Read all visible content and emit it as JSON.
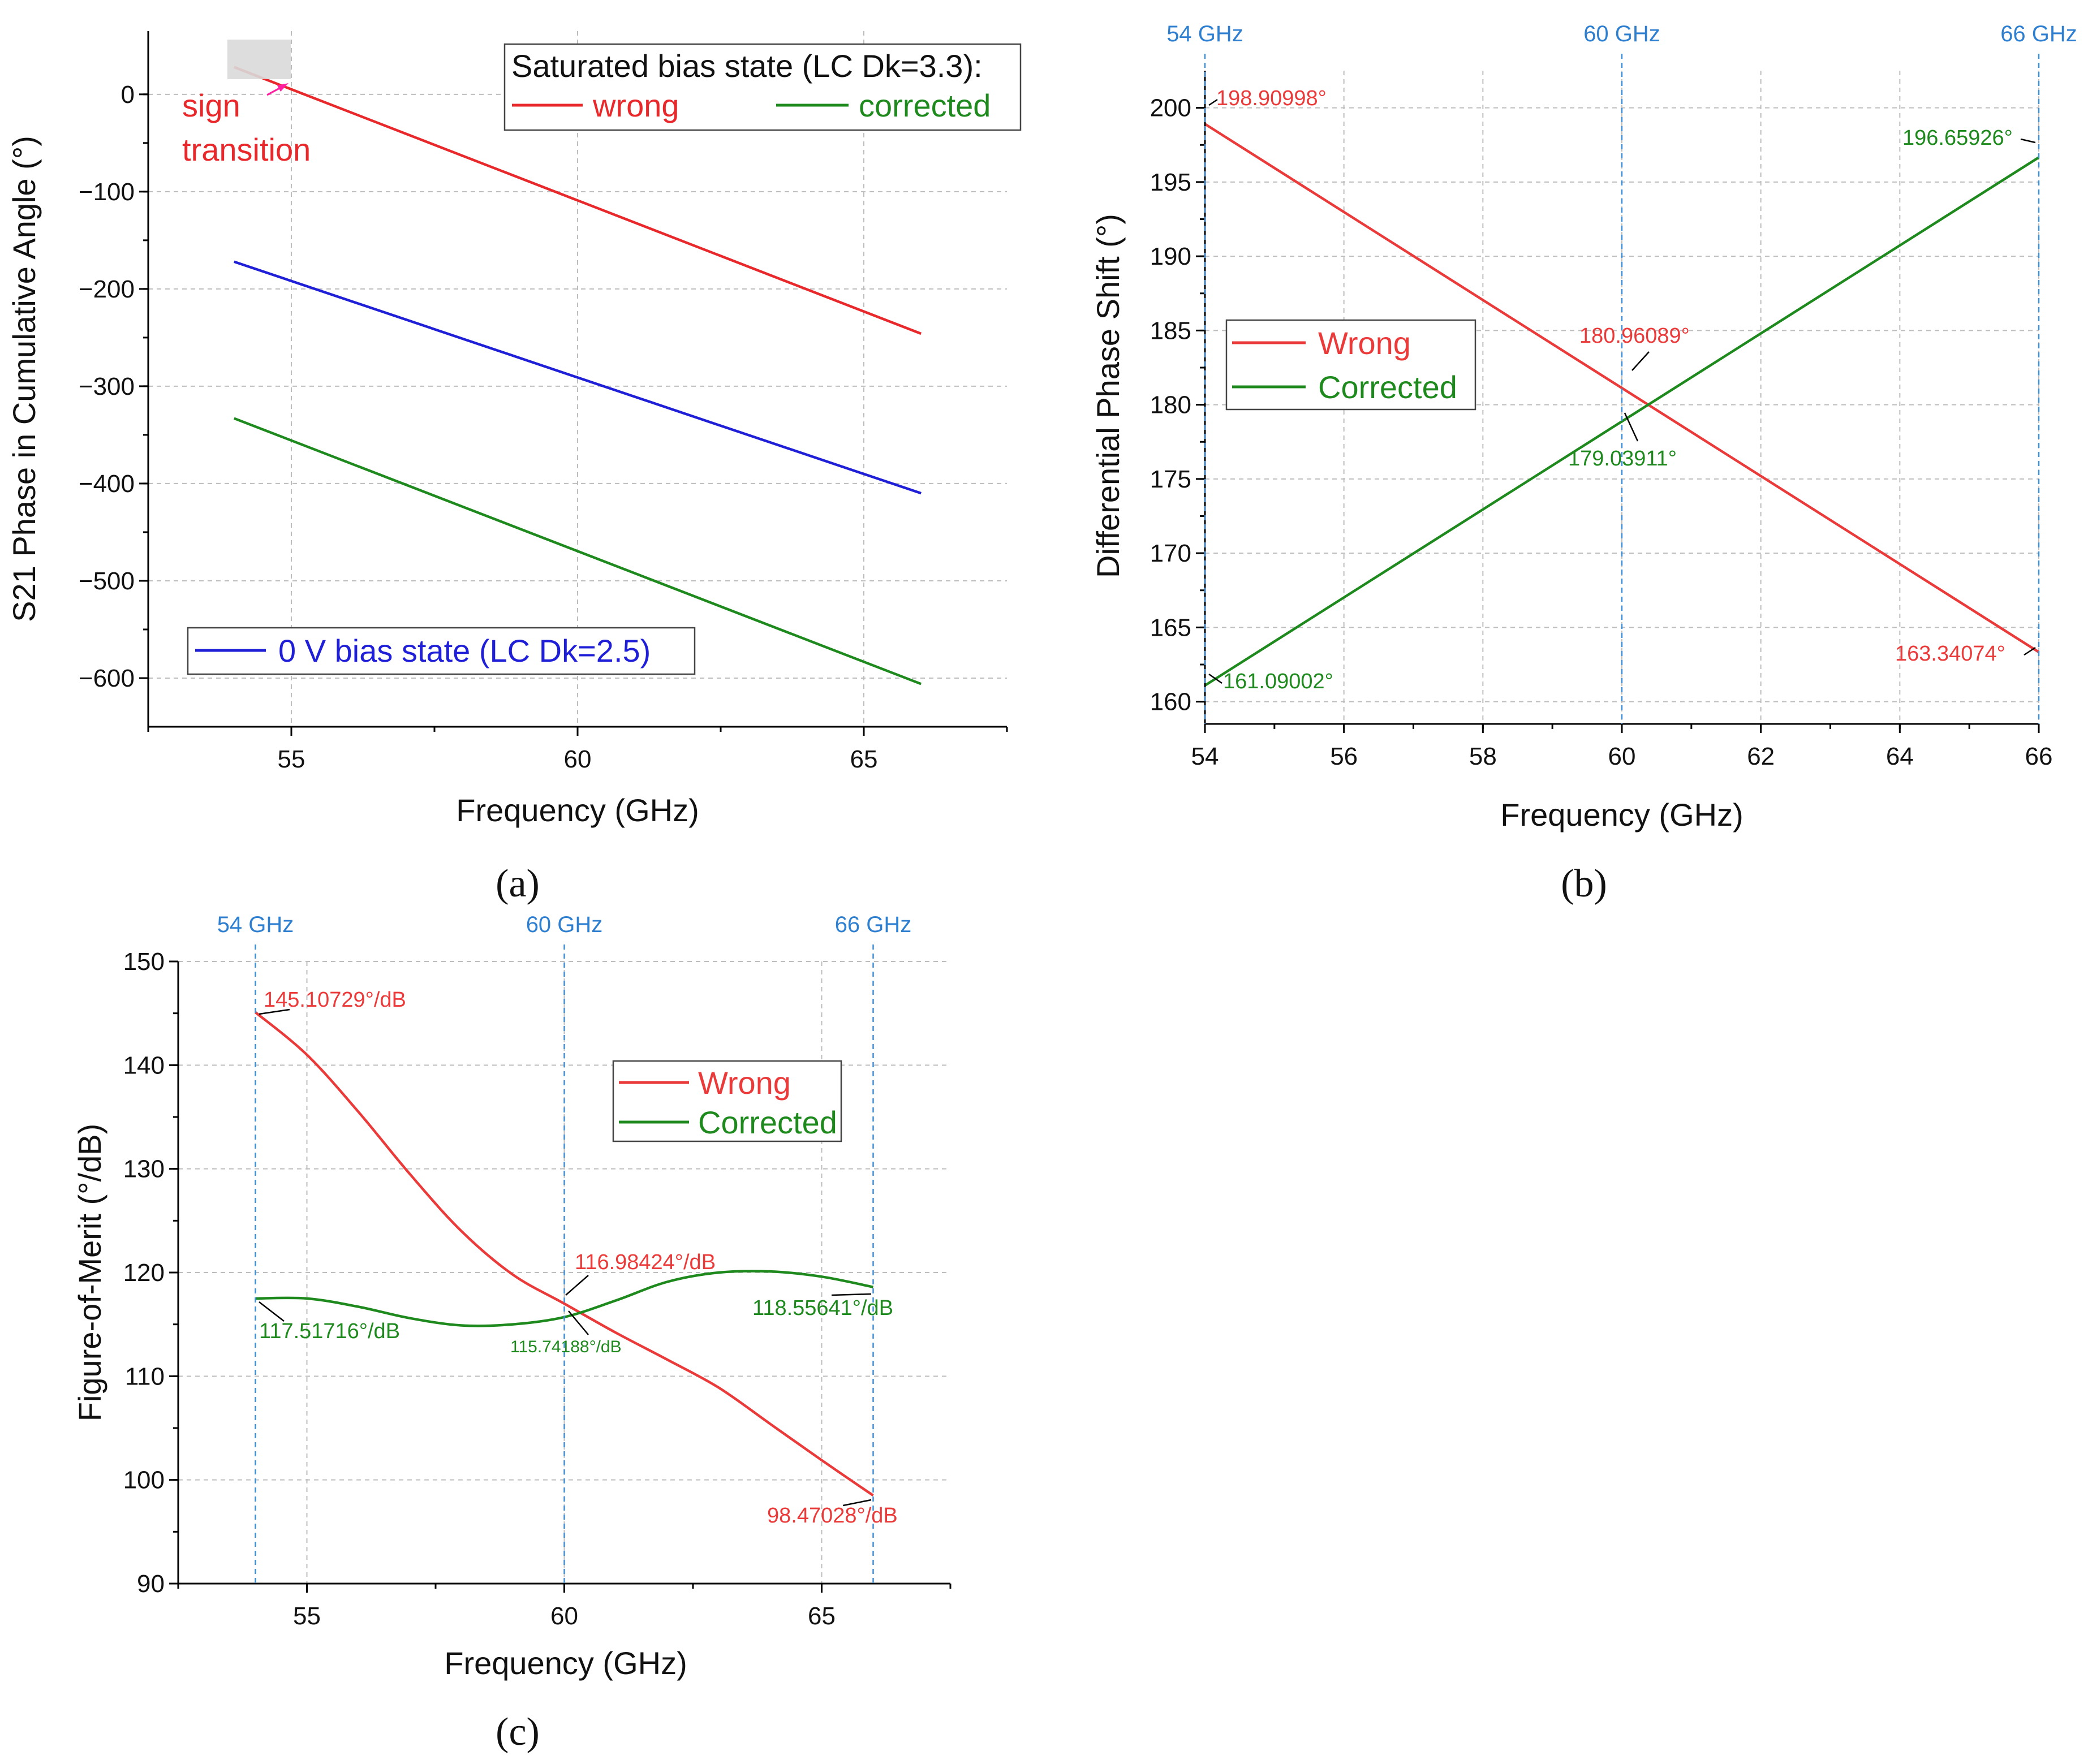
{
  "chart_data": [
    {
      "id": "a",
      "type": "line",
      "panel_label": "(a)",
      "xlabel": "Frequency (GHz)",
      "ylabel": "S21 Phase in Cumulative Angle (°)",
      "xlim": [
        52.5,
        67.5
      ],
      "ylim": [
        -650,
        65
      ],
      "x_ticks": [
        55,
        60,
        65
      ],
      "y_ticks": [
        0,
        -100,
        -200,
        -300,
        -400,
        -500,
        -600
      ],
      "series": [
        {
          "name": "wrong",
          "color": "#e8282a",
          "x": [
            54,
            66
          ],
          "y": [
            28,
            -246
          ]
        },
        {
          "name": "corrected",
          "color": "#1e8a1e",
          "x": [
            54,
            66
          ],
          "y": [
            -333,
            -606
          ]
        },
        {
          "name": "0 V bias state (LC Dk=2.5)",
          "color": "#1f1fd8",
          "x": [
            54,
            66
          ],
          "y": [
            -172,
            -410
          ]
        }
      ],
      "legend_top": {
        "title": "Saturated bias state (LC Dk=3.3):",
        "entries": [
          "wrong",
          "corrected"
        ]
      },
      "legend_bottom": {
        "entries": [
          "0 V bias state (LC Dk=2.5)"
        ]
      },
      "annotation": {
        "text_line1": "sign",
        "text_line2": "transition",
        "color": "#e8282a",
        "arrow_color": "#ff1fa0"
      }
    },
    {
      "id": "b",
      "type": "line",
      "panel_label": "(b)",
      "xlabel": "Frequency (GHz)",
      "ylabel": "Differential Phase Shift  (°)",
      "xlim": [
        54,
        66
      ],
      "ylim": [
        158.5,
        202.5
      ],
      "x_ticks": [
        54,
        56,
        58,
        60,
        62,
        64,
        66
      ],
      "y_ticks": [
        160,
        165,
        170,
        175,
        180,
        185,
        190,
        195,
        200
      ],
      "top_markers": [
        {
          "x": 54,
          "label": "54 GHz"
        },
        {
          "x": 60,
          "label": "60 GHz"
        },
        {
          "x": 66,
          "label": "66 GHz"
        }
      ],
      "series": [
        {
          "name": "Wrong",
          "color": "#ea3a3a",
          "x": [
            54,
            66
          ],
          "y": [
            198.90998,
            163.34074
          ]
        },
        {
          "name": "Corrected",
          "color": "#1e8a1e",
          "x": [
            54,
            66
          ],
          "y": [
            161.09002,
            196.65926
          ]
        }
      ],
      "annotations": [
        {
          "text": "198.90998°",
          "color": "#ea3a3a"
        },
        {
          "text": "163.34074°",
          "color": "#ea3a3a"
        },
        {
          "text": "180.96089°",
          "color": "#ea3a3a"
        },
        {
          "text": "196.65926°",
          "color": "#1e8a1e"
        },
        {
          "text": "161.09002°",
          "color": "#1e8a1e"
        },
        {
          "text": "179.03911°",
          "color": "#1e8a1e"
        }
      ]
    },
    {
      "id": "c",
      "type": "line",
      "panel_label": "(c)",
      "xlabel": "Frequency (GHz)",
      "ylabel": "Figure-of-Merit (°/dB)",
      "xlim": [
        52.5,
        67.5
      ],
      "ylim": [
        90,
        150
      ],
      "x_ticks": [
        55,
        60,
        65
      ],
      "y_ticks": [
        90,
        100,
        110,
        120,
        130,
        140,
        150
      ],
      "top_markers": [
        {
          "x": 54,
          "label": "54 GHz"
        },
        {
          "x": 60,
          "label": "60 GHz"
        },
        {
          "x": 66,
          "label": "66 GHz"
        }
      ],
      "series": [
        {
          "name": "Wrong",
          "color": "#ea3a3a",
          "x": [
            54,
            55,
            56,
            57,
            58,
            59,
            60,
            61,
            62,
            63,
            64,
            65,
            66
          ],
          "y": [
            145.1,
            141.0,
            135.5,
            129.5,
            124.0,
            119.8,
            117.0,
            114.2,
            111.6,
            108.9,
            105.4,
            101.9,
            98.5
          ]
        },
        {
          "name": "Corrected",
          "color": "#1e8a1e",
          "x": [
            54,
            55,
            56,
            57,
            58,
            59,
            60,
            61,
            62,
            63,
            64,
            65,
            66
          ],
          "y": [
            117.5,
            117.5,
            116.7,
            115.6,
            114.9,
            115.0,
            115.7,
            117.3,
            119.1,
            120.0,
            120.1,
            119.6,
            118.6
          ]
        }
      ],
      "annotations": [
        {
          "text": "145.10729°/dB",
          "color": "#ea3a3a"
        },
        {
          "text": "116.98424°/dB",
          "color": "#ea3a3a"
        },
        {
          "text": "98.47028°/dB",
          "color": "#ea3a3a"
        },
        {
          "text": "117.51716°/dB",
          "color": "#1e8a1e"
        },
        {
          "text": "115.74188°/dB",
          "color": "#1e8a1e"
        },
        {
          "text": "118.55641°/dB",
          "color": "#1e8a1e"
        }
      ]
    }
  ]
}
